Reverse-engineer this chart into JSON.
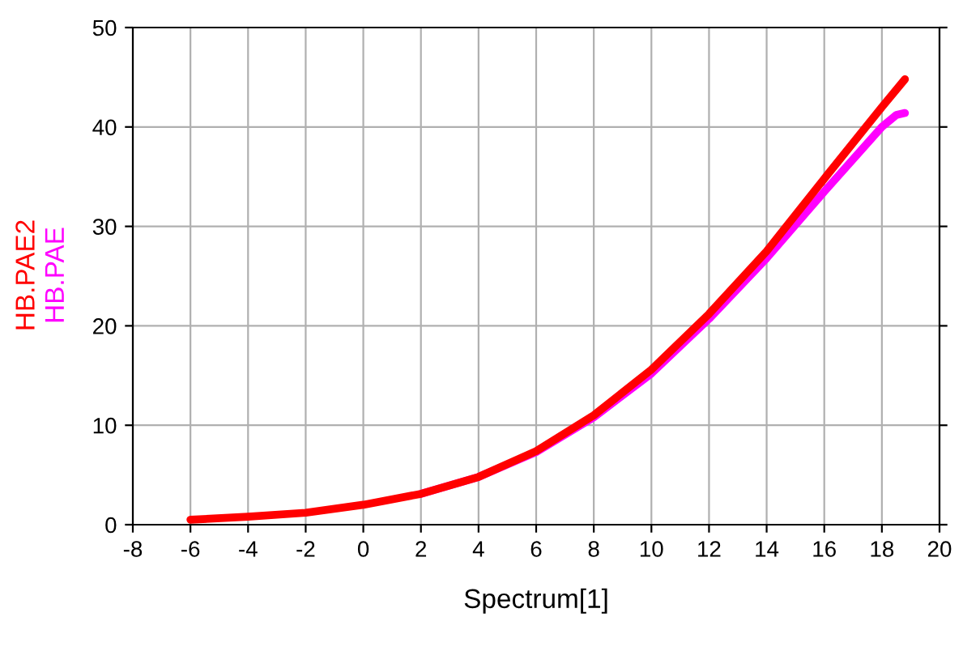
{
  "chart_data": {
    "type": "line",
    "xlabel": "Spectrum[1]",
    "xlim": [
      -8,
      20
    ],
    "xticks": [
      -8,
      -6,
      -4,
      -2,
      0,
      2,
      4,
      6,
      8,
      10,
      12,
      14,
      16,
      18,
      20
    ],
    "ylim": [
      0,
      50
    ],
    "yticks": [
      0,
      10,
      20,
      30,
      40,
      50
    ],
    "grid": true,
    "legend": false,
    "marker": "none",
    "line_style": "solid",
    "series": [
      {
        "name": "HB.PAE",
        "color": "#ff00ff",
        "x": [
          2,
          4,
          6,
          8,
          10,
          12,
          14,
          16,
          18,
          18.5,
          18.8
        ],
        "values": [
          3.1,
          4.8,
          7.3,
          10.8,
          15.2,
          20.7,
          26.8,
          33.5,
          40,
          41.2,
          41.4
        ]
      },
      {
        "name": "HB.PAE2",
        "color": "#ff0000",
        "x": [
          -6,
          -4,
          -2,
          0,
          2,
          4,
          6,
          8,
          10,
          12,
          14,
          16,
          18,
          18.8
        ],
        "values": [
          0.5,
          0.8,
          1.2,
          2,
          3.1,
          4.8,
          7.4,
          11,
          15.6,
          21.2,
          27.5,
          34.8,
          42,
          44.8
        ]
      }
    ]
  }
}
